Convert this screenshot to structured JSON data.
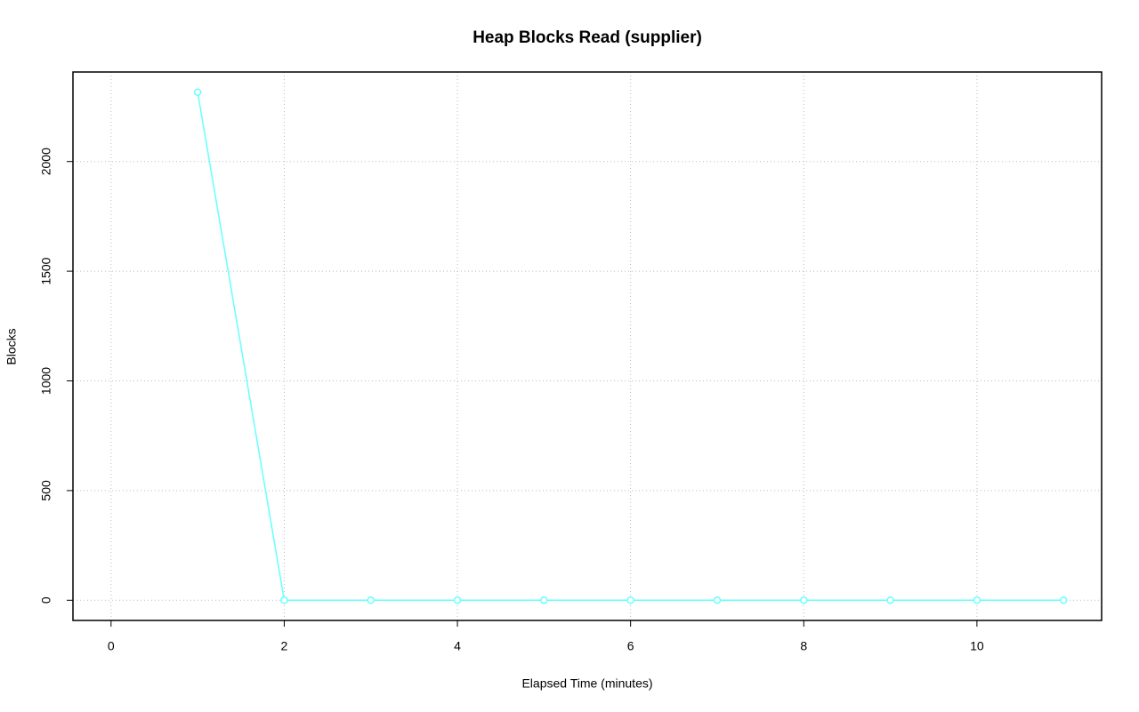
{
  "chart_data": {
    "type": "line",
    "title": "Heap Blocks Read (supplier)",
    "xlabel": "Elapsed Time (minutes)",
    "ylabel": "Blocks",
    "x": [
      1,
      2,
      3,
      4,
      5,
      6,
      7,
      8,
      9,
      10,
      11
    ],
    "series": [
      {
        "color": "#66ffff",
        "values": [
          2316,
          0,
          0,
          0,
          0,
          0,
          0,
          0,
          0,
          0,
          0
        ]
      }
    ],
    "xlim": [
      -0.44,
      11.44
    ],
    "xticks": [
      0,
      2,
      4,
      6,
      8,
      10
    ],
    "ylim": [
      -92,
      2408
    ],
    "yticks": [
      0,
      500,
      1000,
      1500,
      2000
    ],
    "grid": true
  }
}
